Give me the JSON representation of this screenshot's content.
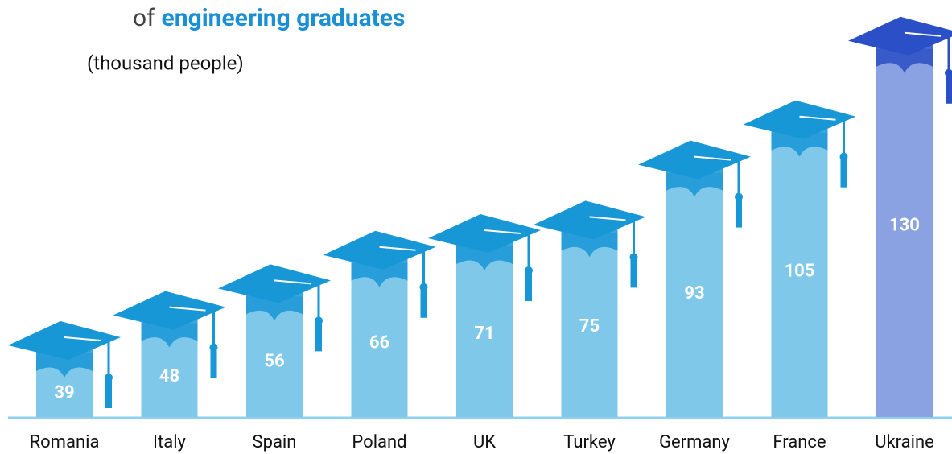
{
  "chart_data": {
    "type": "bar",
    "title": [
      "of",
      "engineering graduates"
    ],
    "subtitle": "(thousand people)",
    "categories": [
      "Romania",
      "Italy",
      "Spain",
      "Poland",
      "UK",
      "Turkey",
      "Germany",
      "France",
      "Ukraine"
    ],
    "values": [
      39,
      48,
      56,
      66,
      71,
      75,
      93,
      105,
      130
    ],
    "colors": [
      "#7fc8ea",
      "#7fc8ea",
      "#7fc8ea",
      "#7fc8ea",
      "#7fc8ea",
      "#7fc8ea",
      "#7fc8ea",
      "#7fc8ea",
      "#8aa2e2"
    ],
    "cap_colors": [
      "#1797d6",
      "#1797d6",
      "#1797d6",
      "#1797d6",
      "#1797d6",
      "#1797d6",
      "#1797d6",
      "#1797d6",
      "#2a4fc6"
    ],
    "ylim": [
      20,
      135
    ]
  }
}
